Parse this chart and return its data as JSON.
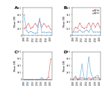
{
  "years": [
    2008,
    2009,
    2010,
    2011,
    2012,
    2013,
    2014,
    2015,
    2016,
    2017,
    2018,
    2019,
    2020
  ],
  "panel_A": {
    "label": "A",
    "ap_ha": [
      2e-05,
      2.5e-05,
      3.5e-05,
      2e-05,
      2.5e-05,
      3.5e-05,
      2.5e-05,
      4.5e-05,
      2.5e-05,
      3.5e-05,
      2.5e-05,
      2.8e-05,
      1.8e-05
    ],
    "ap_v1": [
      6e-05,
      1.5e-05,
      8e-06,
      1.2e-05,
      8e-06,
      6e-06,
      8e-06,
      5e-05,
      8e-06,
      1e-05,
      8e-06,
      1e-05,
      8e-06
    ],
    "ylim": [
      0,
      8e-05
    ],
    "yticks": [
      0,
      2e-05,
      4e-05,
      6e-05,
      8e-05
    ],
    "ytick_labels": [
      "0",
      "2e-5",
      "4e-5",
      "6e-5",
      "8e-5"
    ]
  },
  "panel_B": {
    "label": "B",
    "ap_ha": [
      5e-06,
      1.2e-05,
      1e-05,
      1.8e-05,
      1.2e-05,
      1e-05,
      1.2e-05,
      1.8e-05,
      1.2e-05,
      1.8e-05,
      1.2e-05,
      1.8e-05,
      1.2e-05
    ],
    "ap_v1": [
      5e-06,
      5e-06,
      5e-06,
      8e-06,
      5e-06,
      5e-06,
      8e-06,
      5e-06,
      1e-05,
      5e-06,
      5e-06,
      5e-06,
      5e-06
    ],
    "ylim": [
      0,
      4e-05
    ],
    "yticks": [
      0,
      1e-05,
      2e-05,
      3e-05,
      4e-05
    ],
    "ytick_labels": [
      "0",
      "1e-5",
      "2e-5",
      "3e-5",
      "4e-5"
    ]
  },
  "panel_C": {
    "label": "C",
    "ap_ha": [
      0.0,
      0.0,
      0.0,
      0.0,
      0.0,
      0.0,
      0.0,
      0.0,
      0.0,
      0.0,
      0.0,
      8e-06,
      6e-05
    ],
    "ap_v1": [
      0.0,
      0.0,
      0.0,
      0.0,
      0.0,
      0.0,
      0.0,
      0.0,
      6e-06,
      0.0,
      0.0,
      0.0,
      0.0
    ],
    "ylim": [
      0,
      8e-05
    ],
    "yticks": [
      0,
      2e-05,
      4e-05,
      6e-05,
      8e-05
    ],
    "ytick_labels": [
      "0",
      "2e-5",
      "4e-5",
      "6e-5",
      "8e-5"
    ]
  },
  "panel_D": {
    "label": "D",
    "ap_ha": [
      2e-06,
      5e-06,
      2e-06,
      5e-06,
      5e-06,
      3e-06,
      3e-06,
      5e-06,
      2e-06,
      5e-06,
      5e-06,
      5e-06,
      2e-06
    ],
    "ap_v1": [
      0.0,
      1e-05,
      0.0,
      2e-06,
      4.5e-05,
      2e-06,
      2e-06,
      6.5e-05,
      2e-05,
      2e-06,
      8e-06,
      1.2e-05,
      2e-06
    ],
    "ylim": [
      0,
      8e-05
    ],
    "yticks": [
      0,
      2e-05,
      4e-05,
      6e-05,
      8e-05
    ],
    "ytick_labels": [
      "0",
      "2e-5",
      "4e-5",
      "6e-5",
      "8e-5"
    ]
  },
  "color_ha": "#e07070",
  "color_v1": "#70b0d8",
  "marker_ha": "o",
  "marker_v1": "o",
  "legend_labels": [
    "Ap-ha",
    "Ap-V1"
  ],
  "xlabel_ticks": [
    2008,
    2010,
    2012,
    2014,
    2016,
    2018,
    2020
  ],
  "ylabel": "Mean ERI",
  "background_color": "#ffffff"
}
